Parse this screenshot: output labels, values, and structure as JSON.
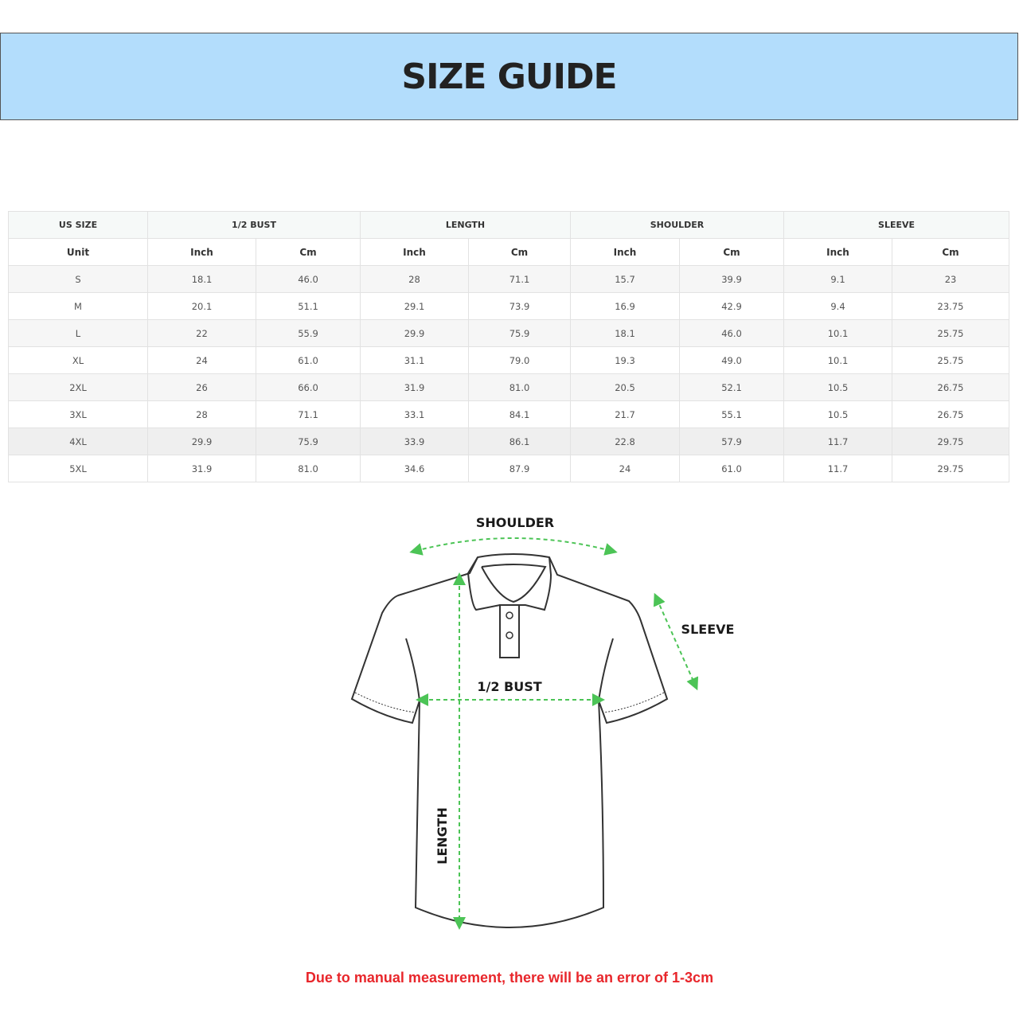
{
  "title": "SIZE GUIDE",
  "table": {
    "groups": [
      "US SIZE",
      "1/2 BUST",
      "LENGTH",
      "SHOULDER",
      "SLEEVE"
    ],
    "units": [
      "Unit",
      "Inch",
      "Cm",
      "Inch",
      "Cm",
      "Inch",
      "Cm",
      "Inch",
      "Cm"
    ],
    "rows": [
      [
        "S",
        "18.1",
        "46.0",
        "28",
        "71.1",
        "15.7",
        "39.9",
        "9.1",
        "23"
      ],
      [
        "M",
        "20.1",
        "51.1",
        "29.1",
        "73.9",
        "16.9",
        "42.9",
        "9.4",
        "23.75"
      ],
      [
        "L",
        "22",
        "55.9",
        "29.9",
        "75.9",
        "18.1",
        "46.0",
        "10.1",
        "25.75"
      ],
      [
        "XL",
        "24",
        "61.0",
        "31.1",
        "79.0",
        "19.3",
        "49.0",
        "10.1",
        "25.75"
      ],
      [
        "2XL",
        "26",
        "66.0",
        "31.9",
        "81.0",
        "20.5",
        "52.1",
        "10.5",
        "26.75"
      ],
      [
        "3XL",
        "28",
        "71.1",
        "33.1",
        "84.1",
        "21.7",
        "55.1",
        "10.5",
        "26.75"
      ],
      [
        "4XL",
        "29.9",
        "75.9",
        "33.9",
        "86.1",
        "22.8",
        "57.9",
        "11.7",
        "29.75"
      ],
      [
        "5XL",
        "31.9",
        "81.0",
        "34.6",
        "87.9",
        "24",
        "61.0",
        "11.7",
        "29.75"
      ]
    ]
  },
  "diagram": {
    "shoulder_label": "SHOULDER",
    "sleeve_label": "SLEEVE",
    "bust_label": "1/2 BUST",
    "length_label": "LENGTH",
    "arrow_color": "#4cc456"
  },
  "note": "Due to manual measurement, there will be an error of 1-3cm",
  "colors": {
    "banner": "#b3ddfc",
    "note": "#e8262b"
  }
}
